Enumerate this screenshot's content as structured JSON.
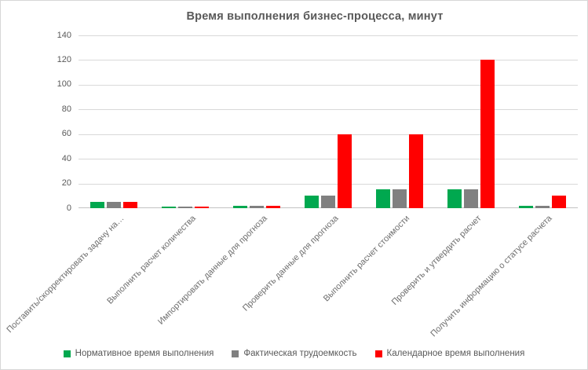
{
  "title": "Время выполнения бизнес-процесса, минут",
  "chart_data": {
    "type": "bar",
    "title": "Время выполнения бизнес-процесса, минут",
    "categories": [
      "Поставить/скорректировать задачу на…",
      "Выполнить расчет количества",
      "Импортировать данные для прогноза",
      "Проверить данные для прогноза",
      "Выполнить расчет стоимости",
      "Проверить и утвердить расчет",
      "Получить информацию о статусе расчета"
    ],
    "series": [
      {
        "key": "normative",
        "name": "Нормативное время выполнения",
        "color": "#00A84F",
        "values": [
          5,
          1,
          2,
          10,
          15,
          15,
          2
        ]
      },
      {
        "key": "actual",
        "name": "Фактическая трудоемкость",
        "color": "#808080",
        "values": [
          5,
          1,
          2,
          10,
          15,
          15,
          2
        ]
      },
      {
        "key": "calendar",
        "name": "Календарное время выполнения",
        "color": "#FF0000",
        "values": [
          5,
          1,
          2,
          60,
          60,
          120,
          10
        ]
      }
    ],
    "ylim": [
      0,
      140
    ],
    "yticks": [
      0,
      20,
      40,
      60,
      80,
      100,
      120,
      140
    ],
    "xlabel": "",
    "ylabel": "",
    "grid": true,
    "legend_position": "bottom"
  },
  "colors": {
    "gridline": "#D9D9D9",
    "axis_line": "#C3C3C3",
    "text": "#595959",
    "axis_text": "#6E6E6E",
    "border": "#D7D7D7",
    "background": "#FFFFFF"
  }
}
